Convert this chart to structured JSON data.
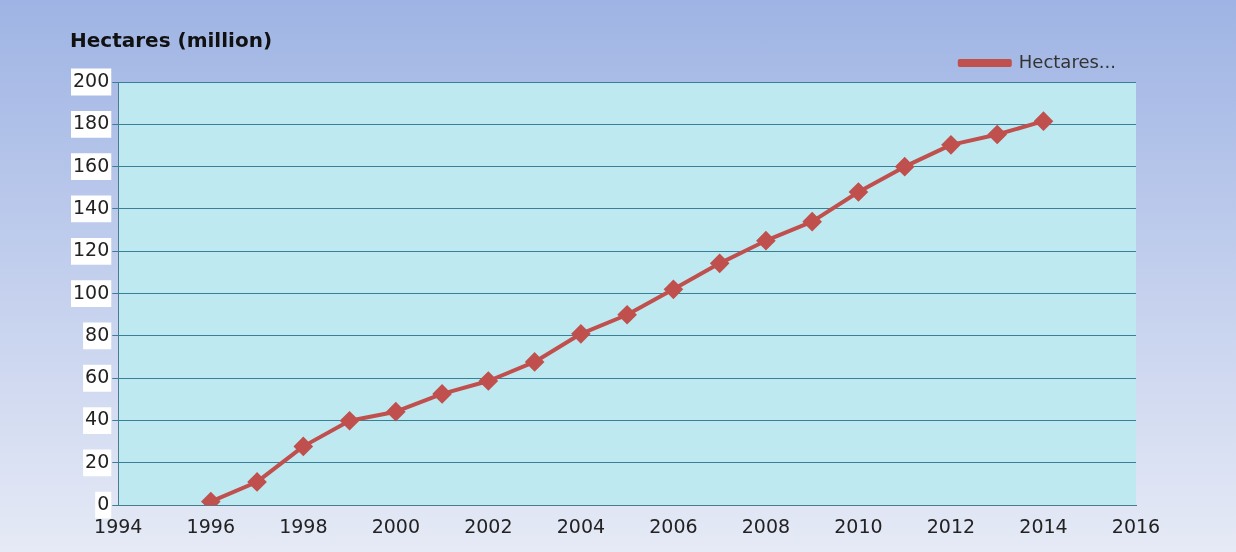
{
  "chart_data": {
    "type": "line",
    "title": "Hectares (million)",
    "x": [
      1996,
      1997,
      1998,
      1999,
      2000,
      2001,
      2002,
      2003,
      2004,
      2005,
      2006,
      2007,
      2008,
      2009,
      2010,
      2011,
      2012,
      2013,
      2014
    ],
    "series": [
      {
        "name": "Hectares...",
        "color": "#c0504d",
        "values": [
          1.7,
          11,
          27.8,
          39.9,
          44.2,
          52.6,
          58.7,
          67.7,
          81,
          90,
          102,
          114.3,
          125,
          134,
          148,
          160,
          170.3,
          175.2,
          181.5
        ]
      }
    ],
    "xlim": [
      1994,
      2016
    ],
    "xticks": [
      1994,
      1996,
      1998,
      2000,
      2002,
      2004,
      2006,
      2008,
      2010,
      2012,
      2014,
      2016
    ],
    "ylim": [
      0,
      200
    ],
    "yticks": [
      0,
      20,
      40,
      60,
      80,
      100,
      120,
      140,
      160,
      180,
      200
    ],
    "grid": "y",
    "legend": "top right",
    "marker": "diamond",
    "line_style": "solid"
  }
}
